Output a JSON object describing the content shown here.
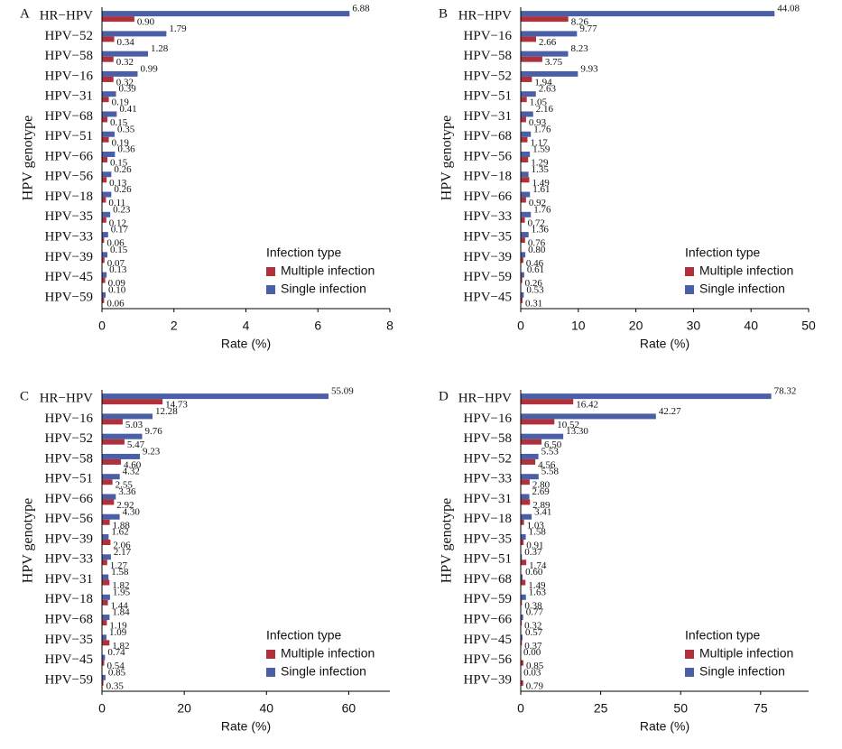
{
  "chart_data": [
    {
      "type": "bar",
      "orientation": "horizontal",
      "label": "A",
      "xlabel": "Rate (%)",
      "ylabel": "HPV genotype",
      "categories": [
        "HR−HPV",
        "HPV−52",
        "HPV−58",
        "HPV−16",
        "HPV−31",
        "HPV−68",
        "HPV−51",
        "HPV−66",
        "HPV−56",
        "HPV−18",
        "HPV−35",
        "HPV−33",
        "HPV−39",
        "HPV−45",
        "HPV−59"
      ],
      "series": [
        {
          "name": "Multiple infection",
          "color": "#b0303c",
          "values": [
            0.9,
            0.34,
            0.32,
            0.32,
            0.19,
            0.15,
            0.19,
            0.15,
            0.13,
            0.11,
            0.12,
            0.06,
            0.07,
            0.09,
            0.06
          ],
          "value_labels": [
            "0.90",
            "0.34",
            "0.32",
            "0.32",
            "0.19",
            "0.15",
            "0.19",
            "0.15",
            "0.13",
            "0.11",
            "0.12",
            "0.06",
            "0.07",
            "0.09",
            "0.06"
          ]
        },
        {
          "name": "Single infection",
          "color": "#4a5fa5",
          "values": [
            6.88,
            1.79,
            1.28,
            0.99,
            0.39,
            0.41,
            0.35,
            0.36,
            0.26,
            0.26,
            0.23,
            0.17,
            0.15,
            0.13,
            0.1
          ],
          "value_labels": [
            "6.88",
            "1.79",
            "1.28",
            "0.99",
            "0.39",
            "0.41",
            "0.35",
            "0.36",
            "0.26",
            "0.26",
            "0.23",
            "0.17",
            "0.15",
            "0.13",
            "0.10"
          ]
        }
      ],
      "xlim": [
        0,
        8
      ],
      "xticks": [
        0,
        2,
        4,
        6,
        8
      ],
      "legend_title": "Infection type",
      "legend": "lower right"
    },
    {
      "type": "bar",
      "orientation": "horizontal",
      "label": "B",
      "xlabel": "Rate (%)",
      "ylabel": "HPV genotype",
      "categories": [
        "HR−HPV",
        "HPV−16",
        "HPV−58",
        "HPV−52",
        "HPV−51",
        "HPV−31",
        "HPV−68",
        "HPV−56",
        "HPV−18",
        "HPV−66",
        "HPV−33",
        "HPV−35",
        "HPV−39",
        "HPV−59",
        "HPV−45"
      ],
      "series": [
        {
          "name": "Multiple infection",
          "color": "#b0303c",
          "values": [
            8.26,
            2.66,
            3.75,
            1.94,
            1.05,
            0.93,
            1.17,
            1.29,
            1.49,
            0.92,
            0.72,
            0.76,
            0.46,
            0.26,
            0.31
          ],
          "value_labels": [
            "8.26",
            "2.66",
            "3.75",
            "1.94",
            "1.05",
            "0.93",
            "1.17",
            "1.29",
            "1.49",
            "0.92",
            "0.72",
            "0.76",
            "0.46",
            "0.26",
            "0.31"
          ]
        },
        {
          "name": "Single infection",
          "color": "#4a5fa5",
          "values": [
            44.08,
            9.77,
            8.23,
            9.93,
            2.63,
            2.16,
            1.76,
            1.59,
            1.35,
            1.61,
            1.76,
            1.36,
            0.8,
            0.61,
            0.53
          ],
          "value_labels": [
            "44.08",
            "9.77",
            "8.23",
            "9.93",
            "2.63",
            "2.16",
            "1.76",
            "1.59",
            "1.35",
            "1.61",
            "1.76",
            "1.36",
            "0.80",
            "0.61",
            "0.53"
          ]
        }
      ],
      "xlim": [
        0,
        50
      ],
      "xticks": [
        0,
        10,
        20,
        30,
        40,
        50
      ],
      "legend_title": "Infection type",
      "legend": "lower right"
    },
    {
      "type": "bar",
      "orientation": "horizontal",
      "label": "C",
      "xlabel": "Rate (%)",
      "ylabel": "HPV genotype",
      "categories": [
        "HR−HPV",
        "HPV−16",
        "HPV−52",
        "HPV−58",
        "HPV−51",
        "HPV−66",
        "HPV−56",
        "HPV−39",
        "HPV−33",
        "HPV−31",
        "HPV−18",
        "HPV−68",
        "HPV−35",
        "HPV−45",
        "HPV−59"
      ],
      "series": [
        {
          "name": "Multiple infection",
          "color": "#b0303c",
          "values": [
            14.73,
            5.03,
            5.47,
            4.6,
            2.55,
            2.92,
            1.88,
            2.06,
            1.27,
            1.82,
            1.44,
            1.19,
            1.82,
            0.54,
            0.35
          ],
          "value_labels": [
            "14.73",
            "5.03",
            "5.47",
            "4.60",
            "2.55",
            "2.92",
            "1.88",
            "2.06",
            "1.27",
            "1.82",
            "1.44",
            "1.19",
            "1.82",
            "0.54",
            "0.35"
          ]
        },
        {
          "name": "Single infection",
          "color": "#4a5fa5",
          "values": [
            55.09,
            12.28,
            9.76,
            9.23,
            4.32,
            3.36,
            4.3,
            1.62,
            2.17,
            1.58,
            1.95,
            1.84,
            1.09,
            0.74,
            0.85
          ],
          "value_labels": [
            "55.09",
            "12.28",
            "9.76",
            "9.23",
            "4.32",
            "3.36",
            "4.30",
            "1.62",
            "2.17",
            "1.58",
            "1.95",
            "1.84",
            "1.09",
            "0.74",
            "0.85"
          ]
        }
      ],
      "xlim": [
        0,
        70
      ],
      "xticks": [
        0,
        20,
        40,
        60
      ],
      "legend_title": "Infection type",
      "legend": "lower right"
    },
    {
      "type": "bar",
      "orientation": "horizontal",
      "label": "D",
      "xlabel": "Rate (%)",
      "ylabel": "HPV genotype",
      "categories": [
        "HR−HPV",
        "HPV−16",
        "HPV−58",
        "HPV−52",
        "HPV−33",
        "HPV−31",
        "HPV−18",
        "HPV−35",
        "HPV−51",
        "HPV−68",
        "HPV−59",
        "HPV−66",
        "HPV−45",
        "HPV−56",
        "HPV−39"
      ],
      "series": [
        {
          "name": "Multiple infection",
          "color": "#b0303c",
          "values": [
            16.42,
            10.52,
            6.5,
            4.56,
            2.8,
            2.89,
            1.03,
            0.91,
            1.74,
            1.49,
            0.38,
            0.32,
            0.37,
            0.85,
            0.79
          ],
          "value_labels": [
            "16.42",
            "10.52",
            "6.50",
            "4.56",
            "2.80",
            "2.89",
            "1.03",
            "0.91",
            "1.74",
            "1.49",
            "0.38",
            "0.32",
            "0.37",
            "0.85",
            "0.79"
          ]
        },
        {
          "name": "Single infection",
          "color": "#4a5fa5",
          "values": [
            78.32,
            42.27,
            13.3,
            5.53,
            5.58,
            2.69,
            3.41,
            1.58,
            0.37,
            0.6,
            1.63,
            0.77,
            0.57,
            0.0,
            0.03
          ],
          "value_labels": [
            "78.32",
            "42.27",
            "13.30",
            "5.53",
            "5.58",
            "2.69",
            "3.41",
            "1.58",
            "0.37",
            "0.60",
            "1.63",
            "0.77",
            "0.57",
            "0.00",
            "0.03"
          ]
        }
      ],
      "xlim": [
        0,
        90
      ],
      "xticks": [
        0,
        25,
        50,
        75
      ],
      "legend_title": "Infection type",
      "legend": "lower right"
    }
  ]
}
